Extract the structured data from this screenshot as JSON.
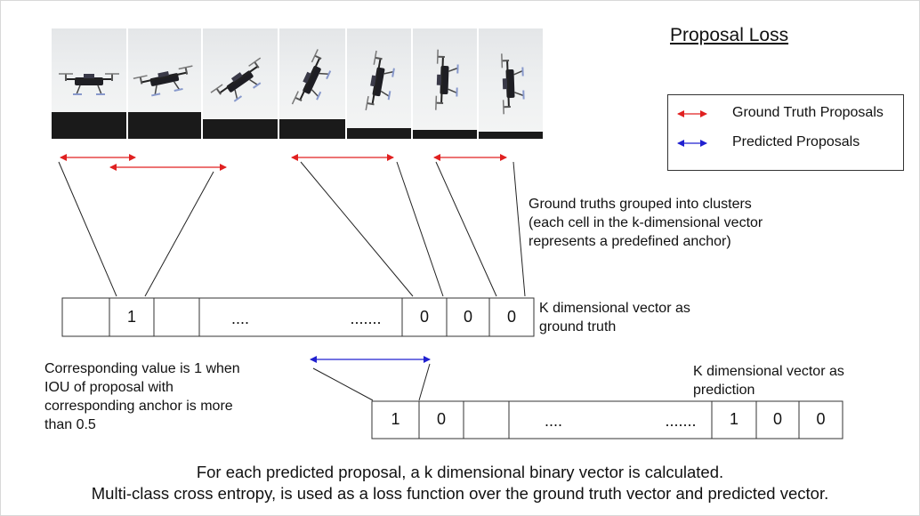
{
  "title": "Proposal Loss",
  "legend": {
    "ground_truth_label": "Ground Truth Proposals",
    "predicted_label": "Predicted Proposals",
    "ground_truth_color": "#e02020",
    "predicted_color": "#2020d0"
  },
  "annotations": {
    "clusters_line1": "Ground truths grouped into clusters",
    "clusters_line2": "(each cell in the k-dimensional vector",
    "clusters_line3": "represents a predefined anchor)",
    "gt_vector_line1": "K dimensional vector as",
    "gt_vector_line2": "ground truth",
    "pred_vector_line1": "K dimensional vector as",
    "pred_vector_line2": "prediction",
    "corr_line1": "Corresponding value is 1 when",
    "corr_line2": "IOU of proposal with",
    "corr_line3": "corresponding anchor is more",
    "corr_line4": "than 0.5"
  },
  "gt_vector": [
    "",
    "1",
    "",
    "....",
    ".......",
    "0",
    "0",
    "0"
  ],
  "pred_vector": [
    "1",
    "0",
    "",
    "....",
    ".......",
    "1",
    "0",
    "0"
  ],
  "footer": {
    "line1": "For each predicted proposal, a k dimensional binary vector is calculated.",
    "line2": "Multi-class cross entropy, is used as a loss function over the ground truth vector and predicted vector."
  },
  "frames": {
    "count": 7,
    "icon": "drone-flip-sequence-photo"
  }
}
